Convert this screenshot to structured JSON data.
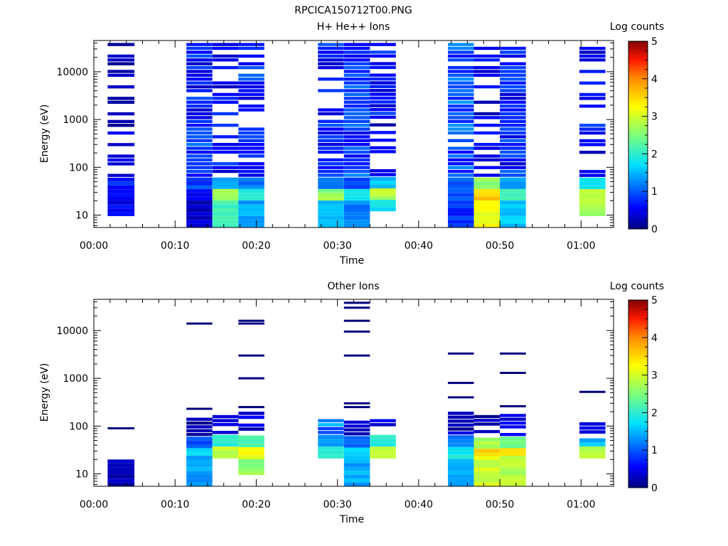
{
  "figure_title": "RPCICA150712T00.PNG",
  "chart_data": [
    {
      "type": "heatmap",
      "title": "H+ He++ Ions",
      "xlabel": "Time",
      "ylabel": "Energy (eV)",
      "x_ticks": [
        "00:00",
        "00:10",
        "00:20",
        "00:30",
        "00:40",
        "00:50",
        "01:00"
      ],
      "x_range_minutes": [
        0,
        64
      ],
      "y_scale": "log",
      "y_range": [
        5.5,
        45000
      ],
      "y_ticks": [
        "10",
        "100",
        "1000",
        "10000"
      ],
      "colorbar": {
        "label": "Log counts",
        "range": [
          0,
          5
        ],
        "ticks": [
          "0",
          "1",
          "2",
          "3",
          "4",
          "5"
        ]
      },
      "columns": [
        {
          "t_start": 1.7,
          "t_end": 5.0,
          "e_min": 9.5,
          "e_max": 40000,
          "low_band": [
            0.5,
            0.6,
            0.7
          ],
          "high_level": 0.3,
          "gap_fraction": 0.45
        },
        {
          "t_start": 11.4,
          "t_end": 14.6,
          "e_min": 5.5,
          "e_max": 40000,
          "low_band": [
            0.3,
            0.6,
            0.9
          ],
          "high_level": 0.8,
          "gap_fraction": 0.08
        },
        {
          "t_start": 14.6,
          "t_end": 17.8,
          "e_min": 5.5,
          "e_max": 40000,
          "low_band": [
            2.2,
            2.6,
            1.5
          ],
          "high_level": 0.6,
          "gap_fraction": 0.4
        },
        {
          "t_start": 17.8,
          "t_end": 21.0,
          "e_min": 5.5,
          "e_max": 40000,
          "low_band": [
            1.4,
            1.9,
            1.2
          ],
          "high_level": 0.8,
          "gap_fraction": 0.15
        },
        {
          "t_start": 27.6,
          "t_end": 30.8,
          "e_min": 5.5,
          "e_max": 40000,
          "low_band": [
            1.6,
            2.6,
            1.1
          ],
          "high_level": 0.7,
          "gap_fraction": 0.3
        },
        {
          "t_start": 30.8,
          "t_end": 34.0,
          "e_min": 5.5,
          "e_max": 40000,
          "low_band": [
            1.2,
            1.8,
            1.0
          ],
          "high_level": 0.9,
          "gap_fraction": 0.05
        },
        {
          "t_start": 34.0,
          "t_end": 37.2,
          "e_min": 12.0,
          "e_max": 40000,
          "low_band": [
            1.8,
            2.8,
            1.5
          ],
          "high_level": 0.6,
          "gap_fraction": 0.3
        },
        {
          "t_start": 43.6,
          "t_end": 46.8,
          "e_min": 5.5,
          "e_max": 40000,
          "low_band": [
            0.8,
            0.9,
            1.0
          ],
          "high_level": 1.0,
          "gap_fraction": 0.03
        },
        {
          "t_start": 46.8,
          "t_end": 50.0,
          "e_min": 5.5,
          "e_max": 40000,
          "low_band": [
            3.2,
            3.6,
            2.6
          ],
          "high_level": 0.5,
          "gap_fraction": 0.4
        },
        {
          "t_start": 50.0,
          "t_end": 53.2,
          "e_min": 5.5,
          "e_max": 40000,
          "low_band": [
            1.6,
            2.0,
            1.3
          ],
          "high_level": 0.8,
          "gap_fraction": 0.08
        },
        {
          "t_start": 59.8,
          "t_end": 63.0,
          "e_min": 9.5,
          "e_max": 40000,
          "low_band": [
            2.8,
            3.0,
            1.8
          ],
          "high_level": 0.6,
          "gap_fraction": 0.3
        }
      ]
    },
    {
      "type": "heatmap",
      "title": "Other Ions",
      "xlabel": "Time",
      "ylabel": "Energy (eV)",
      "x_ticks": [
        "00:00",
        "00:10",
        "00:20",
        "00:30",
        "00:40",
        "00:50",
        "01:00"
      ],
      "x_range_minutes": [
        0,
        64
      ],
      "y_scale": "log",
      "y_range": [
        5.5,
        45000
      ],
      "y_ticks": [
        "10",
        "100",
        "1000",
        "10000"
      ],
      "colorbar": {
        "label": "Log counts",
        "range": [
          0,
          5
        ],
        "ticks": [
          "0",
          "1",
          "2",
          "3",
          "4",
          "5"
        ]
      },
      "columns": [
        {
          "t_start": 1.7,
          "t_end": 5.0,
          "e_min": 5.5,
          "e_max": 20,
          "low_band": [
            0.2,
            0.2,
            0.2
          ],
          "high_level": 0.1,
          "gap_fraction": 0.0,
          "lines": [
            90
          ]
        },
        {
          "t_start": 11.4,
          "t_end": 14.6,
          "e_min": 5.5,
          "e_max": 150,
          "low_band": [
            1.4,
            1.8,
            0.9
          ],
          "high_level": 0.3,
          "gap_fraction": 0.3,
          "lines": [
            230,
            14000
          ]
        },
        {
          "t_start": 14.6,
          "t_end": 17.8,
          "e_min": 21,
          "e_max": 170,
          "low_band": [
            2.6,
            2.9,
            2.0
          ],
          "high_level": 0.5,
          "gap_fraction": 0.2,
          "lines": []
        },
        {
          "t_start": 17.8,
          "t_end": 21.0,
          "e_min": 9.5,
          "e_max": 200,
          "low_band": [
            2.6,
            3.2,
            2.2
          ],
          "high_level": 0.4,
          "gap_fraction": 0.2,
          "lines": [
            250,
            1000,
            3000,
            14000,
            16000
          ]
        },
        {
          "t_start": 27.6,
          "t_end": 30.8,
          "e_min": 21,
          "e_max": 140,
          "low_band": [
            1.6,
            2.0,
            1.4
          ],
          "high_level": 1.2,
          "gap_fraction": 0.1,
          "lines": []
        },
        {
          "t_start": 30.8,
          "t_end": 34.0,
          "e_min": 5.5,
          "e_max": 130,
          "low_band": [
            1.4,
            1.7,
            1.1
          ],
          "high_level": 0.3,
          "gap_fraction": 0.2,
          "lines": [
            250,
            300,
            3000,
            9500,
            16000,
            30000,
            38000
          ]
        },
        {
          "t_start": 34.0,
          "t_end": 37.2,
          "e_min": 21,
          "e_max": 140,
          "low_band": [
            2.4,
            3.0,
            2.0
          ],
          "high_level": 0.4,
          "gap_fraction": 0.3,
          "lines": []
        },
        {
          "t_start": 43.6,
          "t_end": 46.8,
          "e_min": 5.5,
          "e_max": 200,
          "low_band": [
            1.4,
            1.9,
            1.2
          ],
          "high_level": 0.3,
          "gap_fraction": 0.1,
          "lines": [
            400,
            800,
            3300
          ]
        },
        {
          "t_start": 46.8,
          "t_end": 50.0,
          "e_min": 5.5,
          "e_max": 170,
          "low_band": [
            3.0,
            3.5,
            2.8
          ],
          "high_level": 0.4,
          "gap_fraction": 0.4,
          "lines": []
        },
        {
          "t_start": 50.0,
          "t_end": 53.2,
          "e_min": 5.5,
          "e_max": 180,
          "low_band": [
            2.8,
            3.4,
            2.5
          ],
          "high_level": 0.5,
          "gap_fraction": 0.3,
          "lines": [
            260,
            1300,
            3300
          ]
        },
        {
          "t_start": 59.8,
          "t_end": 63.0,
          "e_min": 21,
          "e_max": 120,
          "low_band": [
            2.2,
            2.8,
            1.5
          ],
          "high_level": 0.4,
          "gap_fraction": 0.3,
          "lines": [
            520
          ]
        }
      ]
    }
  ]
}
